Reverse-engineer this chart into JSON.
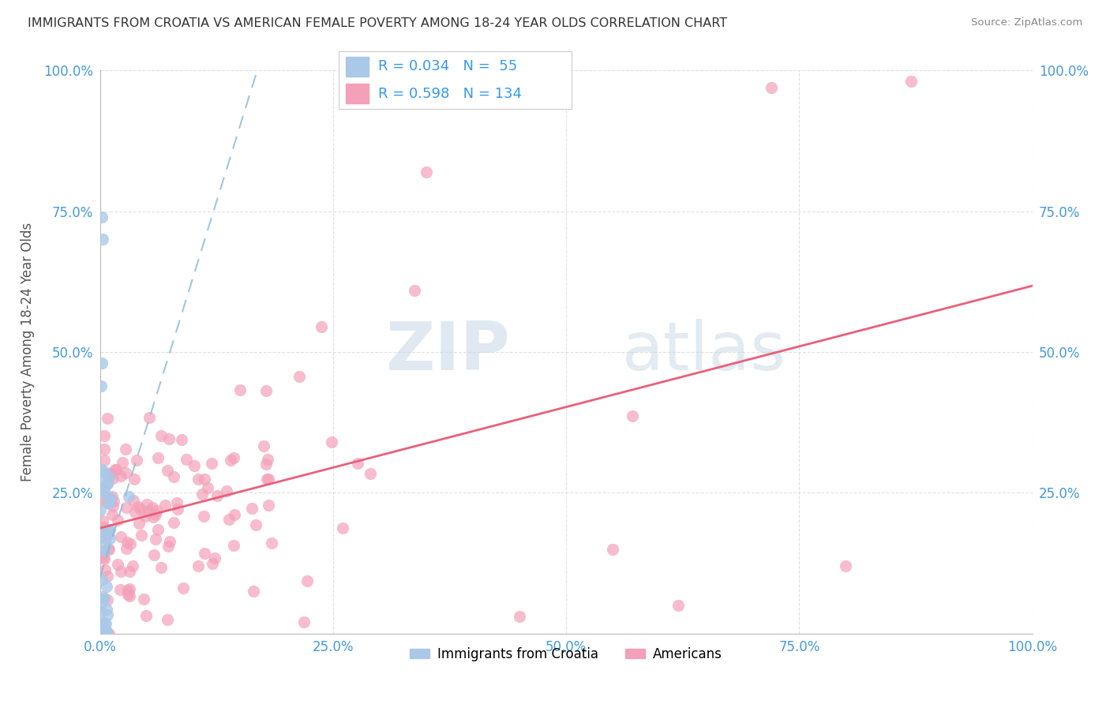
{
  "title": "IMMIGRANTS FROM CROATIA VS AMERICAN FEMALE POVERTY AMONG 18-24 YEAR OLDS CORRELATION CHART",
  "source": "Source: ZipAtlas.com",
  "ylabel": "Female Poverty Among 18-24 Year Olds",
  "xlim": [
    0.0,
    1.0
  ],
  "ylim": [
    0.0,
    1.0
  ],
  "xticks": [
    0.0,
    0.25,
    0.5,
    0.75,
    1.0
  ],
  "xtick_labels": [
    "0.0%",
    "25.0%",
    "50.0%",
    "75.0%",
    "100.0%"
  ],
  "yticks": [
    0.0,
    0.25,
    0.5,
    0.75,
    1.0
  ],
  "ytick_labels_left": [
    "",
    "25.0%",
    "50.0%",
    "75.0%",
    "100.0%"
  ],
  "ytick_labels_right": [
    "",
    "25.0%",
    "50.0%",
    "75.0%",
    "100.0%"
  ],
  "croatia_R": 0.034,
  "croatia_N": 55,
  "american_R": 0.598,
  "american_N": 134,
  "croatia_color": "#aac8e8",
  "american_color": "#f4a0b8",
  "croatia_line_color": "#88b8d8",
  "american_line_color": "#e8607a",
  "legend_label_croatia": "Immigrants from Croatia",
  "legend_label_american": "Americans",
  "watermark_zip": "ZIP",
  "watermark_atlas": "atlas",
  "background_color": "#ffffff",
  "grid_color": "#cccccc",
  "title_color": "#333333",
  "axis_label_color": "#555555",
  "tick_label_color": "#4499dd",
  "legend_text_color": "#333333",
  "legend_value_color": "#3399ee"
}
